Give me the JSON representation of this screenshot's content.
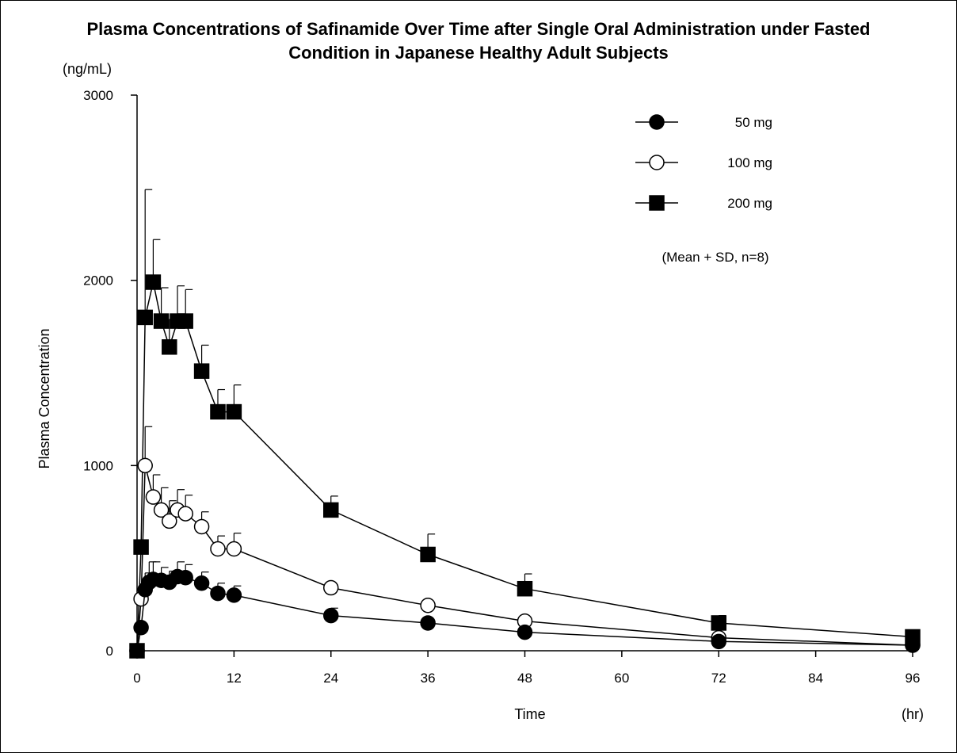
{
  "chart_data": {
    "type": "line",
    "title": "Plasma Concentrations of Safinamide Over Time after Single Oral Administration under Fasted Condition in Japanese Healthy Adult Subjects",
    "title_lines": [
      "Plasma Concentrations of Safinamide Over Time after Single Oral Administration under Fasted",
      "Condition in Japanese Healthy Adult Subjects"
    ],
    "xlabel": "Time",
    "x_unit": "(hr)",
    "ylabel": "Plasma Concentration",
    "y_unit": "(ng/mL)",
    "xlim": [
      0,
      96
    ],
    "ylim": [
      0,
      3000
    ],
    "x_ticks": [
      0,
      12,
      24,
      36,
      48,
      60,
      72,
      84,
      96
    ],
    "y_ticks": [
      0,
      1000,
      2000,
      3000
    ],
    "legend_position": "top-right",
    "note": "(Mean + SD, n=8)",
    "series": [
      {
        "name": "50 mg",
        "marker": "filled-circle",
        "x": [
          0,
          0.5,
          1,
          1.5,
          2,
          3,
          4,
          5,
          6,
          8,
          10,
          12,
          24,
          36,
          48,
          72,
          96
        ],
        "y": [
          0,
          125,
          330,
          370,
          385,
          380,
          370,
          400,
          395,
          365,
          310,
          300,
          190,
          150,
          100,
          50,
          30
        ],
        "sd": [
          0,
          0,
          90,
          110,
          95,
          70,
          60,
          80,
          70,
          60,
          55,
          50,
          40,
          0,
          0,
          0,
          0
        ]
      },
      {
        "name": "100 mg",
        "marker": "open-circle",
        "x": [
          0,
          0.5,
          1,
          2,
          3,
          4,
          5,
          6,
          8,
          10,
          12,
          24,
          36,
          48,
          72,
          96
        ],
        "y": [
          0,
          280,
          1000,
          830,
          760,
          700,
          760,
          740,
          670,
          550,
          550,
          340,
          245,
          160,
          70,
          30
        ],
        "sd": [
          0,
          0,
          210,
          120,
          120,
          110,
          110,
          100,
          80,
          70,
          85,
          0,
          0,
          0,
          0,
          0
        ]
      },
      {
        "name": "200 mg",
        "marker": "filled-square",
        "x": [
          0,
          0.5,
          1,
          2,
          3,
          4,
          5,
          6,
          8,
          10,
          12,
          24,
          36,
          48,
          72,
          96
        ],
        "y": [
          0,
          560,
          1800,
          1990,
          1780,
          1640,
          1780,
          1780,
          1510,
          1290,
          1290,
          760,
          520,
          335,
          150,
          75
        ],
        "sd": [
          0,
          0,
          690,
          230,
          180,
          150,
          190,
          170,
          140,
          120,
          145,
          75,
          110,
          80,
          40,
          0
        ]
      }
    ]
  },
  "colors": {
    "ink": "#000000",
    "paper": "#ffffff"
  }
}
